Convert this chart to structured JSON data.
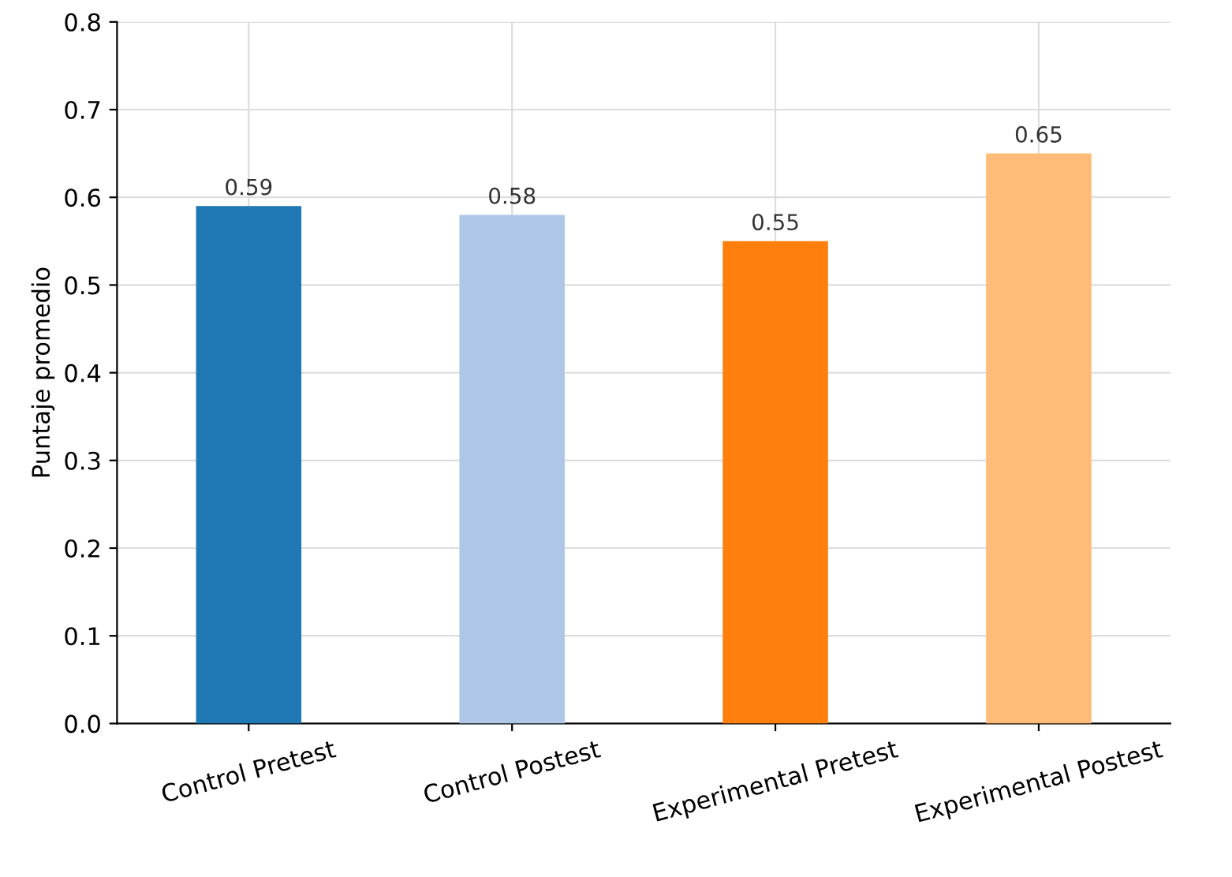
{
  "chart_data": {
    "type": "bar",
    "ylabel": "Puntaje promedio",
    "categories": [
      "Control Pretest",
      "Control Postest",
      "Experimental Pretest",
      "Experimental Postest"
    ],
    "values": [
      0.59,
      0.58,
      0.55,
      0.65
    ],
    "colors": [
      "#1f77b4",
      "#aec7e8",
      "#ff7f0e",
      "#ffbb78"
    ],
    "ylim": [
      0,
      0.8
    ],
    "yticks": [
      {
        "value": 0,
        "label": "0.0"
      },
      0.1,
      0.2,
      0.3,
      0.4,
      0.5,
      0.6,
      0.7,
      0.8
    ],
    "grid": true,
    "data_labels": true
  }
}
